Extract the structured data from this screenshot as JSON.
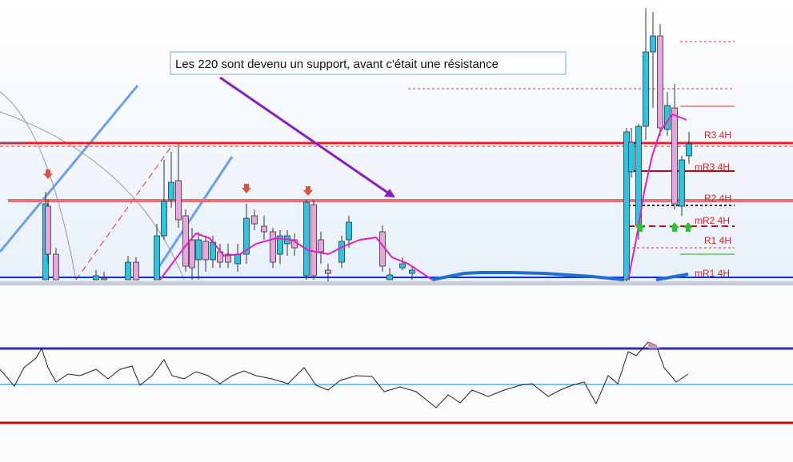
{
  "annotation": "Les 220 sont devenu un support, avant c'était une résistance",
  "levels": [
    "R3 4H",
    "mR3 4H",
    "R2 4H",
    "mR2 4H",
    "R1 4H",
    "mR1 4H"
  ]
}
